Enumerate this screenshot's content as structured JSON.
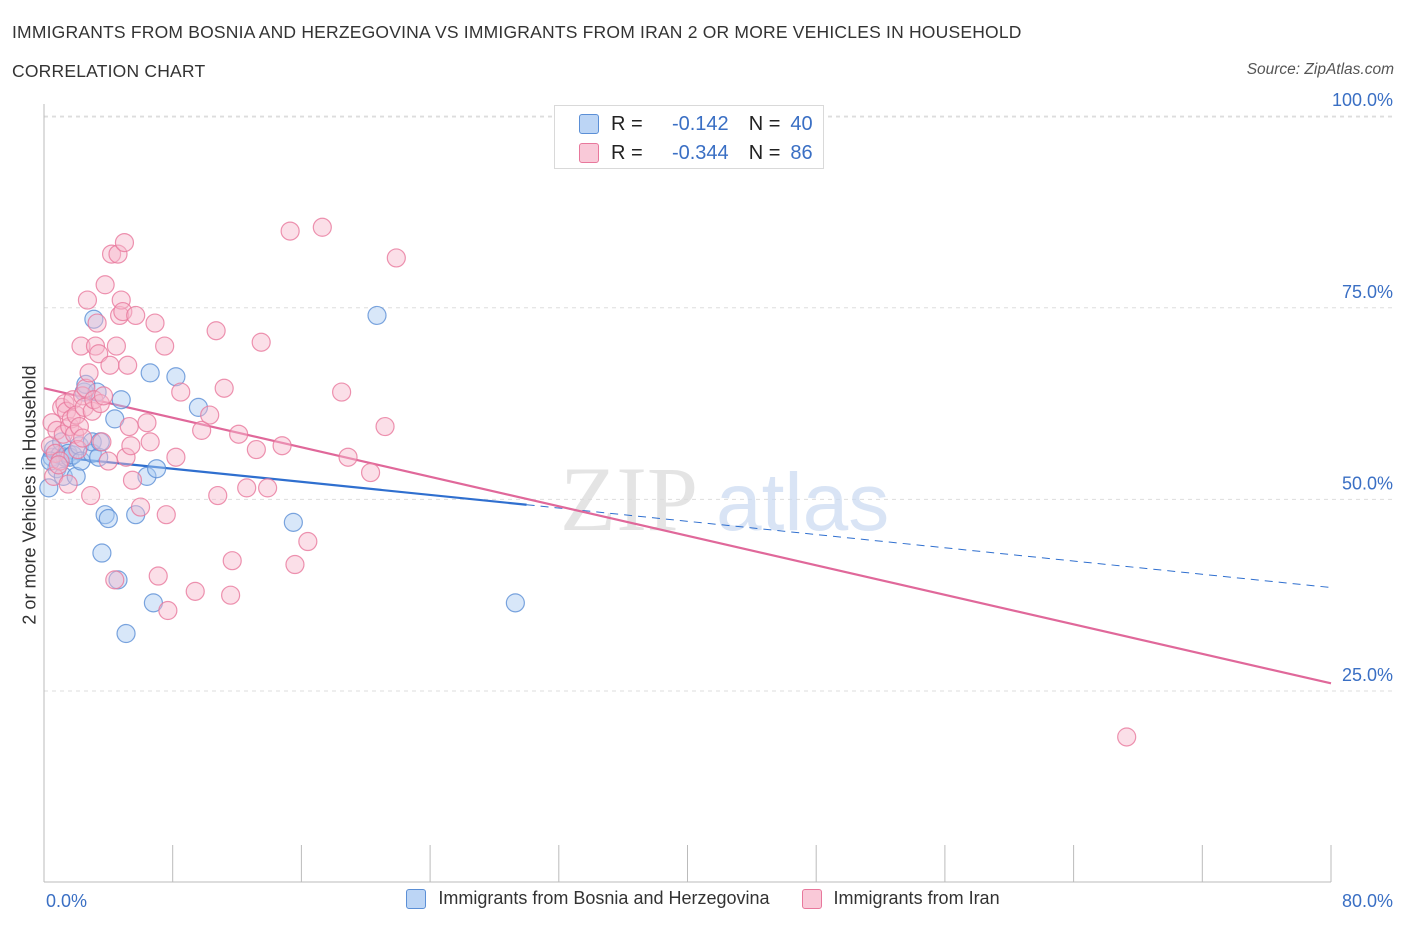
{
  "title": "IMMIGRANTS FROM BOSNIA AND HERZEGOVINA VS IMMIGRANTS FROM IRAN 2 OR MORE VEHICLES IN HOUSEHOLD",
  "subtitle": "CORRELATION CHART",
  "source": "Source: ZipAtlas.com",
  "watermark": {
    "zip": "ZIP",
    "atlas": "atlas"
  },
  "colors": {
    "blue_fill": "#a9c9f2",
    "blue_stroke": "#5b8fd6",
    "blue_line": "#2f6fcf",
    "pink_fill": "#f6b8cc",
    "pink_stroke": "#e8789c",
    "pink_line": "#e0689a",
    "axis_label": "#3a6fc4",
    "grid": "#dddddd"
  },
  "legend_top": [
    {
      "r_label": "R =",
      "r_value": "-0.142",
      "n_label": "N =",
      "n_value": "40"
    },
    {
      "r_label": "R =",
      "r_value": "-0.344",
      "n_label": "N =",
      "n_value": "86"
    }
  ],
  "chart_data": {
    "type": "scatter",
    "title": "IMMIGRANTS FROM BOSNIA AND HERZEGOVINA VS IMMIGRANTS FROM IRAN 2 OR MORE VEHICLES IN HOUSEHOLD",
    "xlabel": "",
    "ylabel": "2 or more Vehicles in Household",
    "xlim": [
      0,
      80
    ],
    "ylim": [
      0,
      105
    ],
    "x_tick_labels": [
      "0.0%",
      "80.0%"
    ],
    "y_ticks": [
      25,
      50,
      75,
      100
    ],
    "y_tick_labels": [
      "25.0%",
      "50.0%",
      "75.0%",
      "100.0%"
    ],
    "grid": true,
    "series": [
      {
        "name": "Immigrants from Bosnia and Herzegovina",
        "color": "blue",
        "r": -0.142,
        "n": 40,
        "trend": {
          "x0": 0,
          "y0": 55.7,
          "x1": 30,
          "y1": 49.3,
          "dash_to_x": 80,
          "dash_to_y": 38.5
        },
        "points": [
          [
            0.3,
            51.5
          ],
          [
            0.5,
            55.5
          ],
          [
            0.6,
            56.5
          ],
          [
            0.8,
            54.0
          ],
          [
            1.0,
            55.8
          ],
          [
            1.1,
            57.5
          ],
          [
            1.2,
            53.0
          ],
          [
            1.3,
            55.5
          ],
          [
            1.5,
            56.0
          ],
          [
            1.6,
            55.5
          ],
          [
            1.8,
            55.8
          ],
          [
            2.0,
            53.0
          ],
          [
            2.2,
            57.0
          ],
          [
            2.3,
            55.0
          ],
          [
            2.5,
            64.0
          ],
          [
            2.6,
            65.0
          ],
          [
            3.0,
            56.0
          ],
          [
            3.0,
            57.5
          ],
          [
            3.1,
            73.5
          ],
          [
            3.3,
            64.0
          ],
          [
            3.4,
            55.5
          ],
          [
            3.5,
            57.5
          ],
          [
            3.6,
            43.0
          ],
          [
            3.8,
            48.0
          ],
          [
            4.0,
            47.5
          ],
          [
            4.4,
            60.5
          ],
          [
            4.6,
            39.5
          ],
          [
            4.8,
            63.0
          ],
          [
            5.1,
            32.5
          ],
          [
            5.7,
            48.0
          ],
          [
            6.4,
            53.0
          ],
          [
            6.6,
            66.5
          ],
          [
            6.8,
            36.5
          ],
          [
            7.0,
            54.0
          ],
          [
            8.2,
            66.0
          ],
          [
            9.6,
            62.0
          ],
          [
            15.5,
            47.0
          ],
          [
            20.7,
            74.0
          ],
          [
            29.3,
            36.5
          ],
          [
            0.4,
            55.0
          ]
        ]
      },
      {
        "name": "Immigrants from Iran",
        "color": "pink",
        "r": -0.344,
        "n": 86,
        "trend": {
          "x0": 0,
          "y0": 64.5,
          "x1": 80,
          "y1": 26.0
        },
        "points": [
          [
            0.4,
            57.0
          ],
          [
            0.5,
            60.0
          ],
          [
            0.6,
            53.0
          ],
          [
            0.7,
            56.0
          ],
          [
            0.8,
            59.0
          ],
          [
            1.0,
            55.0
          ],
          [
            1.1,
            62.0
          ],
          [
            1.2,
            58.5
          ],
          [
            1.3,
            62.5
          ],
          [
            1.4,
            61.5
          ],
          [
            1.5,
            52.0
          ],
          [
            1.6,
            59.5
          ],
          [
            1.7,
            60.5
          ],
          [
            1.8,
            63.0
          ],
          [
            1.9,
            58.5
          ],
          [
            2.0,
            61.0
          ],
          [
            2.1,
            56.5
          ],
          [
            2.2,
            59.5
          ],
          [
            2.3,
            70.0
          ],
          [
            2.4,
            63.5
          ],
          [
            2.5,
            62.0
          ],
          [
            2.6,
            64.5
          ],
          [
            2.7,
            76.0
          ],
          [
            2.8,
            66.5
          ],
          [
            2.9,
            50.5
          ],
          [
            3.0,
            61.5
          ],
          [
            3.1,
            63.0
          ],
          [
            3.2,
            70.0
          ],
          [
            3.3,
            73.0
          ],
          [
            3.4,
            69.0
          ],
          [
            3.5,
            62.5
          ],
          [
            3.6,
            57.5
          ],
          [
            3.7,
            63.5
          ],
          [
            3.8,
            78.0
          ],
          [
            4.0,
            55.0
          ],
          [
            4.1,
            67.5
          ],
          [
            4.2,
            82.0
          ],
          [
            4.4,
            39.5
          ],
          [
            4.5,
            70.0
          ],
          [
            4.6,
            82.0
          ],
          [
            4.7,
            74.0
          ],
          [
            4.8,
            76.0
          ],
          [
            4.9,
            74.5
          ],
          [
            5.0,
            83.5
          ],
          [
            5.1,
            55.5
          ],
          [
            5.2,
            67.5
          ],
          [
            5.3,
            59.5
          ],
          [
            5.4,
            57.0
          ],
          [
            5.5,
            52.5
          ],
          [
            5.7,
            74.0
          ],
          [
            6.0,
            49.0
          ],
          [
            6.4,
            60.0
          ],
          [
            6.6,
            57.5
          ],
          [
            6.9,
            73.0
          ],
          [
            7.1,
            40.0
          ],
          [
            7.5,
            70.0
          ],
          [
            7.6,
            48.0
          ],
          [
            7.7,
            35.5
          ],
          [
            8.2,
            55.5
          ],
          [
            8.5,
            64.0
          ],
          [
            9.4,
            38.0
          ],
          [
            9.8,
            59.0
          ],
          [
            10.3,
            61.0
          ],
          [
            10.7,
            72.0
          ],
          [
            10.8,
            50.5
          ],
          [
            11.2,
            64.5
          ],
          [
            11.6,
            37.5
          ],
          [
            11.7,
            42.0
          ],
          [
            12.1,
            58.5
          ],
          [
            12.6,
            51.5
          ],
          [
            13.2,
            56.5
          ],
          [
            13.5,
            70.5
          ],
          [
            13.9,
            51.5
          ],
          [
            14.8,
            57.0
          ],
          [
            15.3,
            85.0
          ],
          [
            15.6,
            41.5
          ],
          [
            16.4,
            44.5
          ],
          [
            17.3,
            85.5
          ],
          [
            18.5,
            64.0
          ],
          [
            18.9,
            55.5
          ],
          [
            20.3,
            53.5
          ],
          [
            21.2,
            59.5
          ],
          [
            21.9,
            81.5
          ],
          [
            67.3,
            19.0
          ],
          [
            0.9,
            54.5
          ],
          [
            2.4,
            58.0
          ]
        ]
      }
    ]
  },
  "legend_bottom": [
    {
      "label": "Immigrants from Bosnia and Herzegovina"
    },
    {
      "label": "Immigrants from Iran"
    }
  ]
}
